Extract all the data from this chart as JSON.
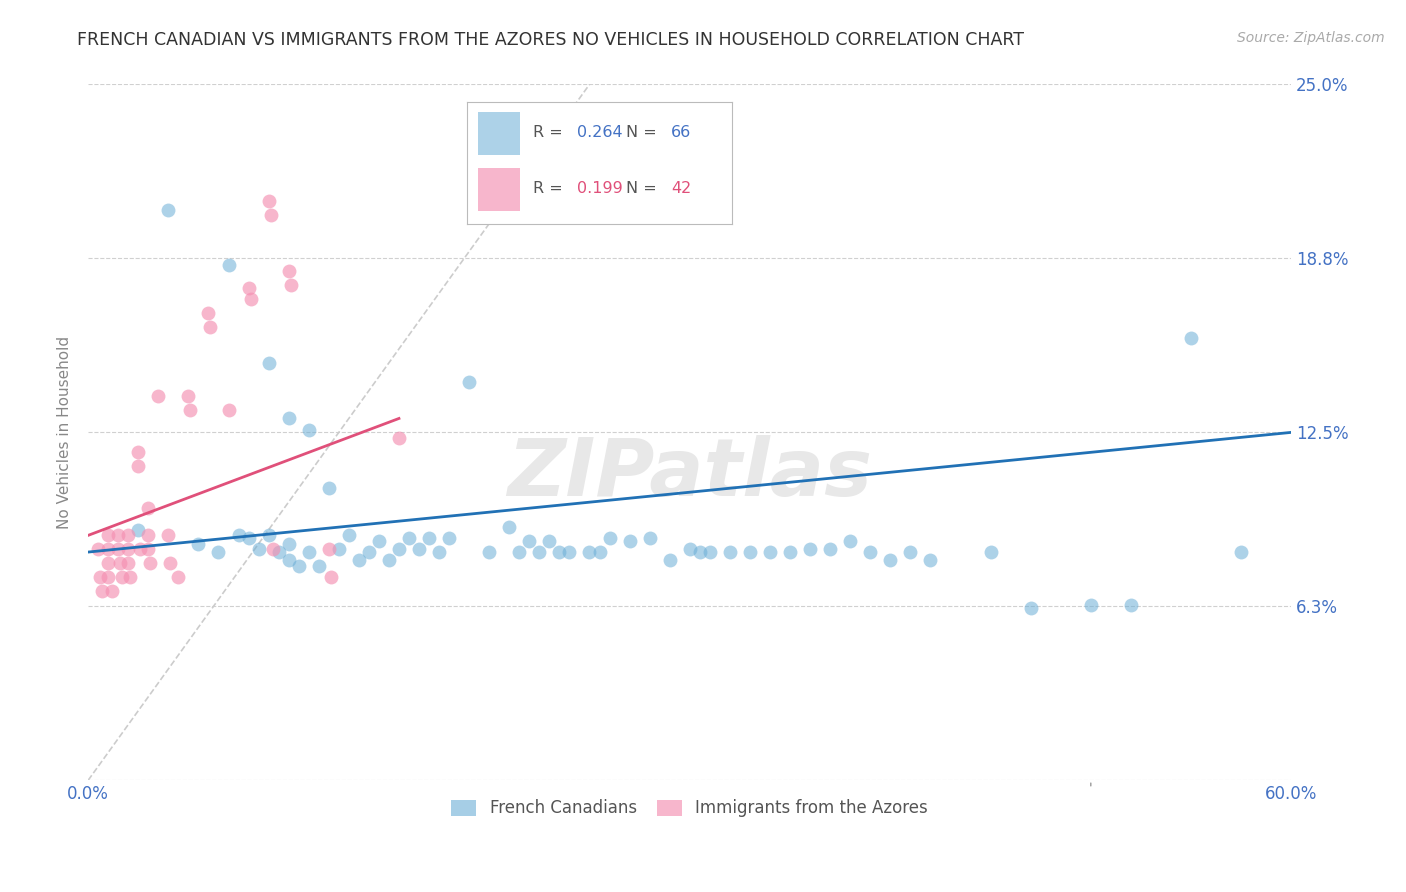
{
  "title": "FRENCH CANADIAN VS IMMIGRANTS FROM THE AZORES NO VEHICLES IN HOUSEHOLD CORRELATION CHART",
  "source": "Source: ZipAtlas.com",
  "ylabel": "No Vehicles in Household",
  "xlim": [
    0.0,
    0.6
  ],
  "ylim": [
    0.0,
    0.25
  ],
  "xticks": [
    0.0,
    0.1,
    0.2,
    0.3,
    0.4,
    0.5,
    0.6
  ],
  "xticklabels": [
    "0.0%",
    "",
    "",
    "",
    "",
    "",
    "60.0%"
  ],
  "yticks": [
    0.0,
    0.0625,
    0.125,
    0.1875,
    0.25
  ],
  "yticklabels": [
    "",
    "6.3%",
    "12.5%",
    "18.8%",
    "25.0%"
  ],
  "blue_color": "#6baed6",
  "pink_color": "#f48fb1",
  "blue_line_color": "#2171b5",
  "pink_line_color": "#e0507a",
  "diagonal_color": "#cccccc",
  "watermark": "ZIPatlas",
  "blue_scatter_x": [
    0.025,
    0.055,
    0.065,
    0.075,
    0.08,
    0.085,
    0.09,
    0.095,
    0.1,
    0.1,
    0.105,
    0.11,
    0.115,
    0.12,
    0.125,
    0.13,
    0.135,
    0.14,
    0.145,
    0.15,
    0.155,
    0.16,
    0.165,
    0.17,
    0.175,
    0.18,
    0.19,
    0.2,
    0.21,
    0.215,
    0.22,
    0.225,
    0.23,
    0.235,
    0.24,
    0.25,
    0.255,
    0.26,
    0.27,
    0.28,
    0.29,
    0.3,
    0.305,
    0.31,
    0.32,
    0.33,
    0.34,
    0.35,
    0.36,
    0.37,
    0.38,
    0.39,
    0.4,
    0.41,
    0.42,
    0.45,
    0.47,
    0.5,
    0.52,
    0.55,
    0.575,
    0.04,
    0.07,
    0.09,
    0.1,
    0.11
  ],
  "blue_scatter_y": [
    0.09,
    0.085,
    0.082,
    0.088,
    0.087,
    0.083,
    0.088,
    0.082,
    0.085,
    0.079,
    0.077,
    0.082,
    0.077,
    0.105,
    0.083,
    0.088,
    0.079,
    0.082,
    0.086,
    0.079,
    0.083,
    0.087,
    0.083,
    0.087,
    0.082,
    0.087,
    0.143,
    0.082,
    0.091,
    0.082,
    0.086,
    0.082,
    0.086,
    0.082,
    0.082,
    0.082,
    0.082,
    0.087,
    0.086,
    0.087,
    0.079,
    0.083,
    0.082,
    0.082,
    0.082,
    0.082,
    0.082,
    0.082,
    0.083,
    0.083,
    0.086,
    0.082,
    0.079,
    0.082,
    0.079,
    0.082,
    0.062,
    0.063,
    0.063,
    0.159,
    0.082,
    0.205,
    0.185,
    0.15,
    0.13,
    0.126
  ],
  "pink_scatter_x": [
    0.005,
    0.006,
    0.007,
    0.01,
    0.01,
    0.01,
    0.01,
    0.012,
    0.015,
    0.015,
    0.016,
    0.017,
    0.02,
    0.02,
    0.02,
    0.021,
    0.025,
    0.025,
    0.026,
    0.03,
    0.03,
    0.03,
    0.031,
    0.035,
    0.04,
    0.041,
    0.045,
    0.05,
    0.051,
    0.06,
    0.061,
    0.07,
    0.08,
    0.081,
    0.09,
    0.091,
    0.092,
    0.1,
    0.101,
    0.12,
    0.121,
    0.155
  ],
  "pink_scatter_y": [
    0.083,
    0.073,
    0.068,
    0.088,
    0.083,
    0.078,
    0.073,
    0.068,
    0.088,
    0.083,
    0.078,
    0.073,
    0.088,
    0.083,
    0.078,
    0.073,
    0.118,
    0.113,
    0.083,
    0.098,
    0.088,
    0.083,
    0.078,
    0.138,
    0.088,
    0.078,
    0.073,
    0.138,
    0.133,
    0.168,
    0.163,
    0.133,
    0.177,
    0.173,
    0.208,
    0.203,
    0.083,
    0.183,
    0.178,
    0.083,
    0.073,
    0.123
  ],
  "blue_line_x": [
    0.0,
    0.6
  ],
  "blue_line_y": [
    0.082,
    0.125
  ],
  "pink_line_x": [
    0.0,
    0.155
  ],
  "pink_line_y": [
    0.088,
    0.13
  ],
  "diag_line_x": [
    0.0,
    0.25
  ],
  "diag_line_y": [
    0.0,
    0.25
  ],
  "title_color": "#333333",
  "axis_tick_color": "#4472c4",
  "background_color": "#ffffff",
  "grid_color": "#d0d0d0",
  "ylabel_color": "#888888",
  "source_color": "#aaaaaa",
  "watermark_color": "#e8e8e8",
  "legend_r_label": "R = ",
  "legend_n_label": "N = ",
  "blue_R": "0.264",
  "blue_N": "66",
  "pink_R": "0.199",
  "pink_N": "42",
  "bottom_legend_labels": [
    "French Canadians",
    "Immigrants from the Azores"
  ]
}
